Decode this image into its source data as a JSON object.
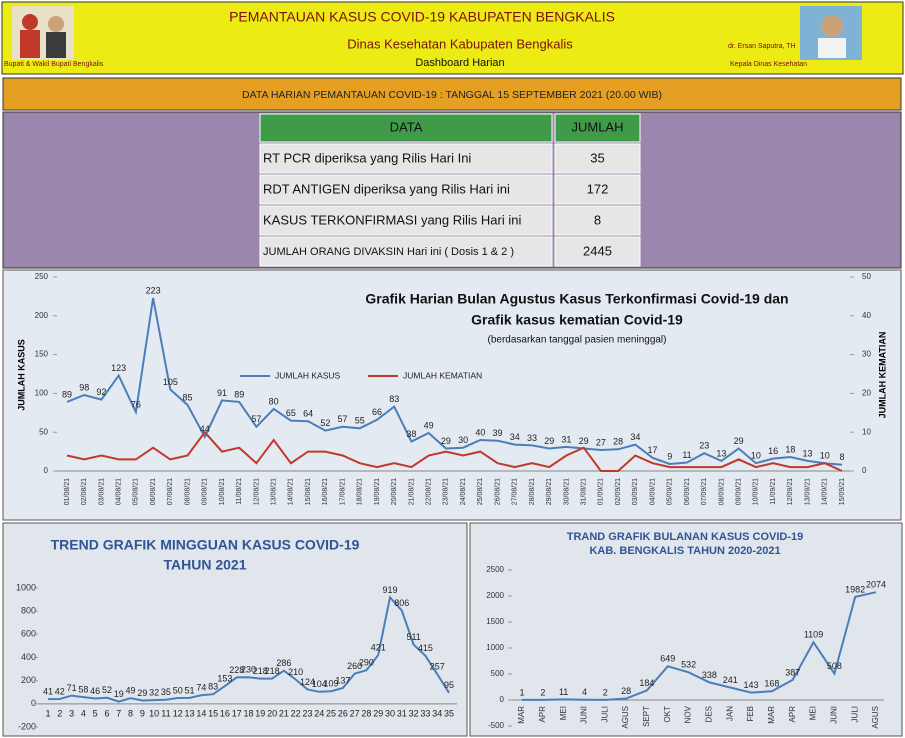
{
  "header": {
    "title": "PEMANTAUAN KASUS COVID-19 KABUPATEN BENGKALIS",
    "subtitle": "Dinas Kesehatan Kabupaten Bengkalis",
    "page": "Dashboard Harian",
    "left_caption": "Bupati & Wakil Bupati Bengkalis",
    "right_name": "dr. Ersan Saputra, TH",
    "right_caption": "Kepala Dinas Kesehatan"
  },
  "banner": "DATA HARIAN PEMANTAUAN COVID-19 : TANGGAL 15 SEPTEMBER 2021 (20.00 WIB)",
  "table": {
    "columns": [
      "DATA",
      "JUMLAH"
    ],
    "rows": [
      [
        "RT PCR diperiksa yang Rilis Hari Ini",
        35
      ],
      [
        "RDT ANTIGEN diperiksa yang Rilis Hari ini",
        172
      ],
      [
        "KASUS TERKONFIRMASI yang Rilis Hari ini",
        8
      ],
      [
        "JUMLAH ORANG DIVAKSIN Hari ini ( Dosis 1 & 2 )",
        2445
      ]
    ]
  },
  "chart_data": [
    {
      "type": "line",
      "title": [
        "Grafik Harian Bulan Agustus Kasus Terkonfirmasi  Covid-19 dan",
        "Grafik kasus kematian Covid-19"
      ],
      "subtitle": "(berdasarkan tanggal pasien meninggal)",
      "ylabel": "JUMLAH KASUS",
      "y2label": "JUMLAH KEMATIAN",
      "categories": [
        "01/08/21",
        "02/08/21",
        "03/08/21",
        "04/08/21",
        "05/08/21",
        "06/08/21",
        "07/08/21",
        "08/08/21",
        "09/08/21",
        "10/08/21",
        "11/08/21",
        "12/08/21",
        "13/08/21",
        "14/08/21",
        "15/08/21",
        "16/08/21",
        "17/08/21",
        "18/08/21",
        "19/08/21",
        "20/08/21",
        "21/08/21",
        "22/08/21",
        "23/08/21",
        "24/08/21",
        "25/08/21",
        "26/08/21",
        "27/08/21",
        "28/08/21",
        "29/08/21",
        "30/08/21",
        "31/08/21",
        "01/09/21",
        "02/09/21",
        "03/09/21",
        "04/09/21",
        "05/09/21",
        "06/09/21",
        "07/09/21",
        "08/09/21",
        "09/09/21",
        "10/09/21",
        "11/09/21",
        "12/09/21",
        "13/09/21",
        "14/09/21",
        "15/09/21"
      ],
      "series": [
        {
          "name": "JUMLAH KASUS",
          "color": "#4a7ebb",
          "labels": true,
          "values": [
            89,
            98,
            92,
            123,
            76,
            223,
            105,
            85,
            44,
            91,
            89,
            57,
            80,
            65,
            64,
            52,
            57,
            55,
            66,
            83,
            38,
            49,
            29,
            30,
            40,
            39,
            34,
            33,
            29,
            31,
            29,
            27,
            28,
            34,
            17,
            9,
            11,
            23,
            13,
            29,
            10,
            16,
            18,
            13,
            10,
            8
          ]
        },
        {
          "name": "JUMLAH KEMATIAN",
          "color": "#c0392b",
          "axis": "y2",
          "labels": false,
          "values": [
            4,
            3,
            4,
            3,
            3,
            6,
            3,
            4,
            10,
            5,
            6,
            2,
            8,
            2,
            5,
            5,
            4,
            2,
            1,
            2,
            1,
            4,
            5,
            4,
            5,
            2,
            1,
            2,
            1,
            4,
            6,
            0,
            0,
            4,
            2,
            1,
            1,
            1,
            1,
            3,
            1,
            2,
            1,
            1,
            2,
            0
          ]
        }
      ],
      "ylim": [
        0,
        250
      ],
      "yticks": [
        0,
        50,
        100,
        150,
        200,
        250
      ],
      "y2lim": [
        0,
        50
      ],
      "y2ticks": [
        0,
        10,
        20,
        30,
        40,
        50
      ]
    },
    {
      "type": "line",
      "title": [
        "TREND GRAFIK MINGGUAN KASUS COVID-19",
        "TAHUN 2021"
      ],
      "categories": [
        "1",
        "2",
        "3",
        "4",
        "5",
        "6",
        "7",
        "8",
        "9",
        "10",
        "11",
        "12",
        "13",
        "14",
        "15",
        "16",
        "17",
        "18",
        "19",
        "20",
        "21",
        "22",
        "23",
        "24",
        "25",
        "26",
        "27",
        "28",
        "29",
        "30",
        "31",
        "32",
        "33",
        "34",
        "35"
      ],
      "series": [
        {
          "name": "KASUS",
          "color": "#4a7ebb",
          "labels": true,
          "values": [
            41,
            42,
            71,
            58,
            46,
            52,
            19,
            49,
            29,
            32,
            35,
            50,
            51,
            74,
            83,
            153,
            228,
            230,
            218,
            218,
            286,
            210,
            124,
            104,
            109,
            137,
            260,
            290,
            421,
            919,
            806,
            511,
            415,
            257,
            95
          ]
        }
      ],
      "ylim": [
        -200,
        1000
      ],
      "yticks": [
        -200,
        0,
        200,
        400,
        600,
        800,
        1000
      ]
    },
    {
      "type": "line",
      "title": [
        "TRAND  GRAFIK BULANAN KASUS COVID-19",
        "KAB. BENGKALIS TAHUN 2020-2021"
      ],
      "categories": [
        "MAR",
        "APR",
        "MEI",
        "JUNI",
        "JULI",
        "AGUS",
        "SEPT",
        "OKT",
        "NOV",
        "DES",
        "JAN",
        "FEB",
        "MAR",
        "APR",
        "MEI",
        "JUNI",
        "JULI",
        "AGUS"
      ],
      "series": [
        {
          "name": "KASUS",
          "color": "#4a7ebb",
          "labels": true,
          "values": [
            1,
            2,
            11,
            4,
            2,
            28,
            184,
            649,
            532,
            338,
            241,
            143,
            168,
            387,
            1109,
            508,
            1982,
            2074
          ]
        }
      ],
      "ylim": [
        -500,
        2500
      ],
      "yticks": [
        -500,
        0,
        500,
        1000,
        1500,
        2000,
        2500
      ]
    }
  ]
}
